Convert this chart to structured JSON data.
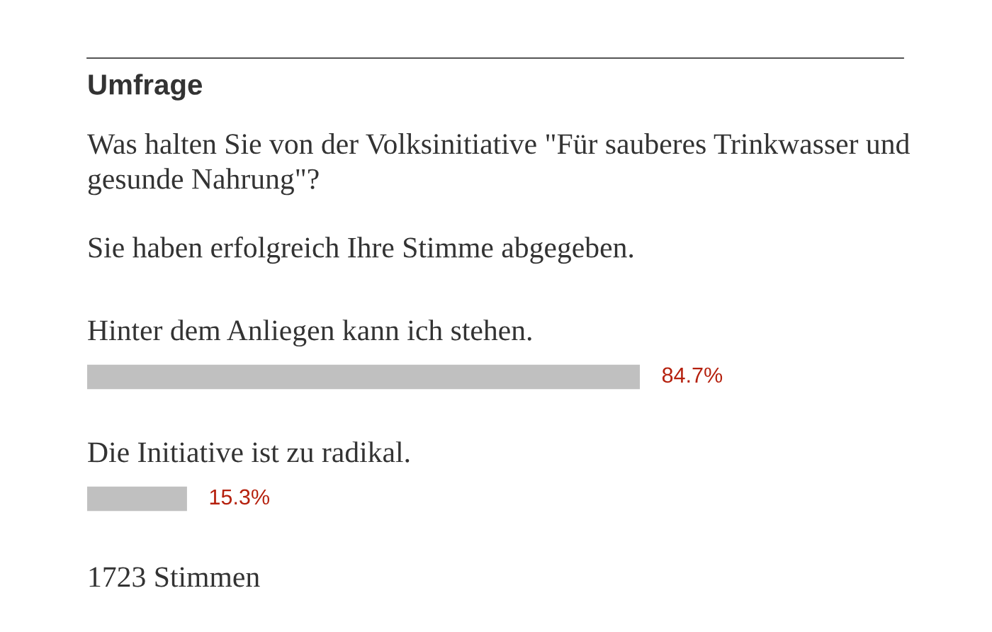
{
  "chart_data": {
    "type": "bar",
    "orientation": "horizontal",
    "title": "Umfrage",
    "subtitle": "Was halten Sie von der Volksinitiative \"Für sauberes Trinkwasser und gesunde Nahrung\"?",
    "categories": [
      "Hinter dem Anliegen kann ich stehen.",
      "Die Initiative ist zu radikal."
    ],
    "values": [
      84.7,
      15.3
    ],
    "color": "#c0c0c0",
    "value_labels": [
      "84.7%",
      "15.3%"
    ],
    "annotations": [
      "Sie haben erfolgreich Ihre Stimme abgegeben.",
      "1723 Stimmen"
    ]
  }
}
